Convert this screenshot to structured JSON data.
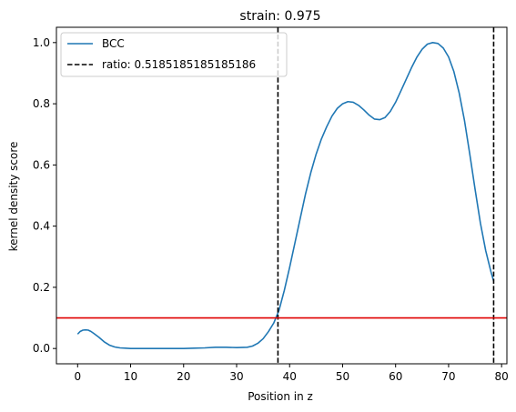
{
  "chart_data": {
    "type": "line",
    "title": "strain: 0.975",
    "xlabel": "Position in z",
    "ylabel": "kernel density score",
    "xlim": [
      -4,
      81
    ],
    "ylim": [
      -0.05,
      1.05
    ],
    "xticks": [
      0,
      10,
      20,
      30,
      40,
      50,
      60,
      70,
      80
    ],
    "yticks": [
      0.0,
      0.2,
      0.4,
      0.6,
      0.8,
      1.0
    ],
    "xtick_labels": [
      "0",
      "10",
      "20",
      "30",
      "40",
      "50",
      "60",
      "70",
      "80"
    ],
    "ytick_labels": [
      "0.0",
      "0.2",
      "0.4",
      "0.6",
      "0.8",
      "1.0"
    ],
    "grid": false,
    "legend_position": "upper-left",
    "series": [
      {
        "name": "BCC",
        "color": "#1f77b4",
        "x": [
          0,
          0.5,
          1,
          1.5,
          2,
          2.5,
          3,
          4,
          5,
          6,
          7,
          8,
          9,
          10,
          12,
          14,
          16,
          18,
          20,
          22,
          24,
          26,
          27,
          28,
          30,
          32,
          33,
          34,
          35,
          36,
          37,
          38,
          39,
          40,
          41,
          42,
          43,
          44,
          45,
          46,
          47,
          48,
          49,
          50,
          51,
          52,
          53,
          54,
          55,
          56,
          57,
          58,
          59,
          60,
          61,
          62,
          63,
          64,
          65,
          66,
          67,
          68,
          69,
          70,
          71,
          72,
          73,
          74,
          75,
          76,
          77,
          78,
          78.5
        ],
        "y": [
          0.047,
          0.056,
          0.06,
          0.061,
          0.06,
          0.056,
          0.05,
          0.037,
          0.022,
          0.011,
          0.005,
          0.002,
          0.001,
          0.0,
          0.0,
          0.0,
          0.0,
          0.0,
          0.0,
          0.001,
          0.002,
          0.004,
          0.004,
          0.004,
          0.003,
          0.004,
          0.008,
          0.017,
          0.032,
          0.055,
          0.083,
          0.125,
          0.19,
          0.265,
          0.345,
          0.425,
          0.505,
          0.575,
          0.635,
          0.685,
          0.725,
          0.76,
          0.785,
          0.8,
          0.807,
          0.805,
          0.795,
          0.78,
          0.763,
          0.75,
          0.748,
          0.755,
          0.775,
          0.805,
          0.842,
          0.88,
          0.918,
          0.952,
          0.978,
          0.995,
          1.0,
          0.997,
          0.982,
          0.953,
          0.905,
          0.835,
          0.745,
          0.635,
          0.52,
          0.41,
          0.32,
          0.25,
          0.22
        ]
      }
    ],
    "reference_lines": [
      {
        "orientation": "vertical",
        "x": 37.8,
        "style": "dashed",
        "color": "#000000",
        "name": "ratio: 0.5185185185185186"
      },
      {
        "orientation": "vertical",
        "x": 78.5,
        "style": "dashed",
        "color": "#000000",
        "name": ""
      },
      {
        "orientation": "horizontal",
        "y": 0.1,
        "style": "solid",
        "color": "#e00000",
        "name": ""
      }
    ],
    "legend": [
      {
        "label": "BCC",
        "style": "solid",
        "color": "#1f77b4"
      },
      {
        "label": "ratio: 0.5185185185185186",
        "style": "dashed",
        "color": "#000000"
      }
    ]
  }
}
